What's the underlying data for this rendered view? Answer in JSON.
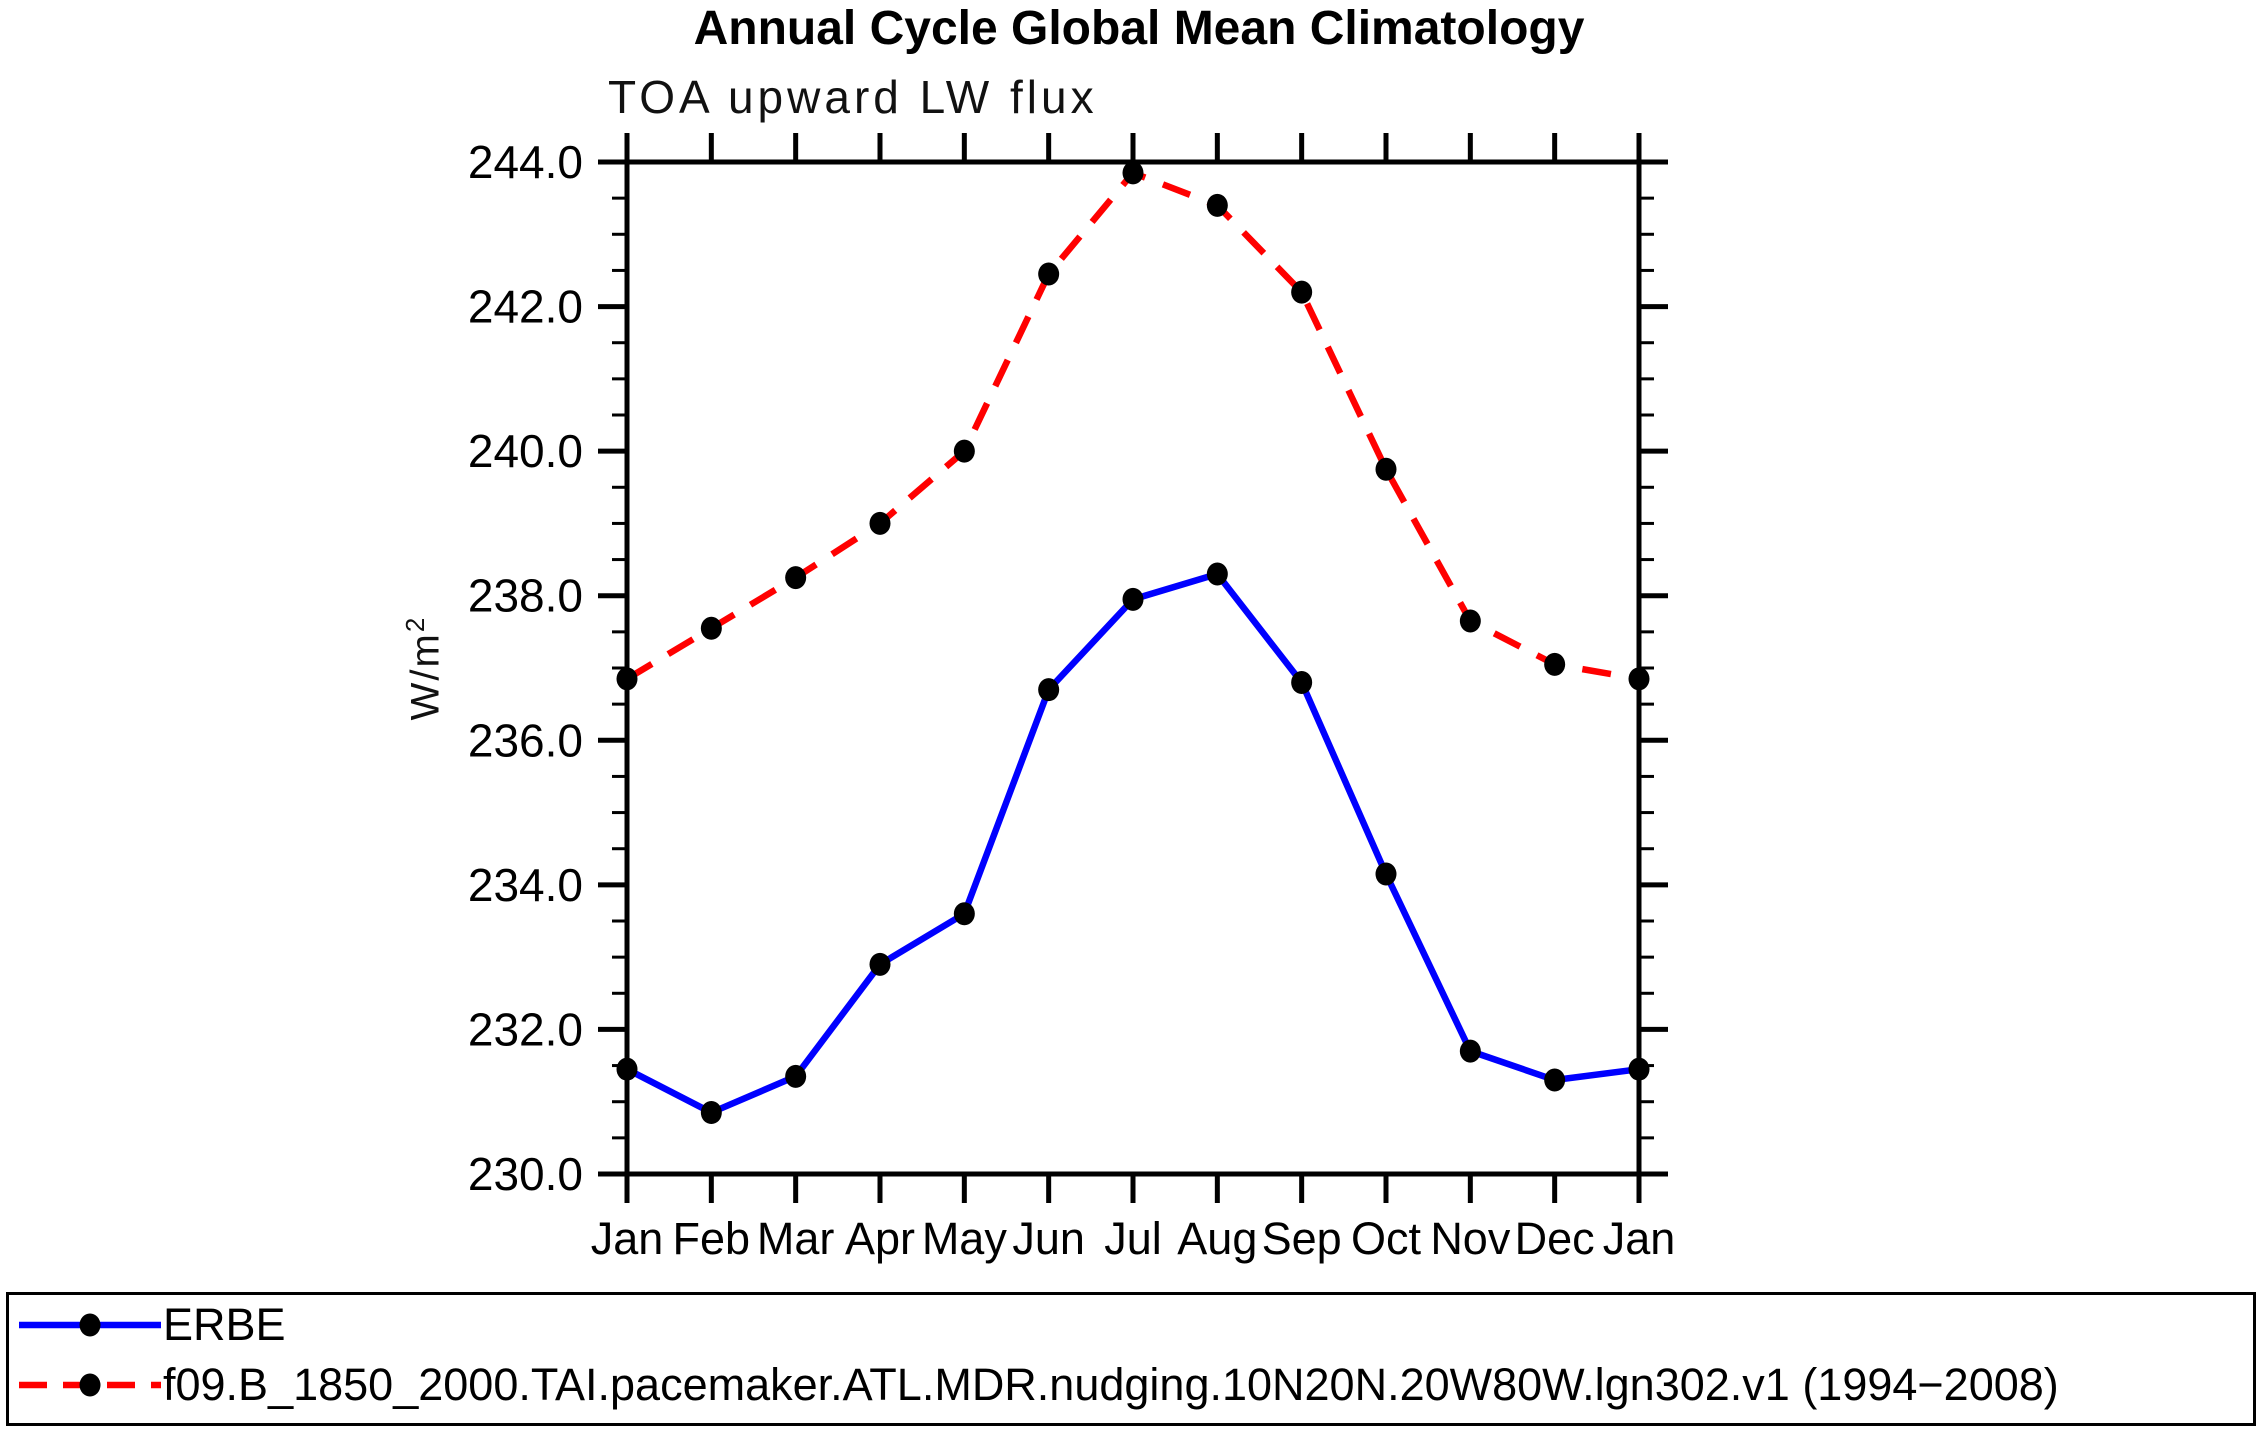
{
  "chart_data": {
    "type": "line",
    "title": "Annual Cycle Global Mean Climatology",
    "subtitle": "TOA upward LW flux",
    "ylabel": "W/m²",
    "ylabel_base": "W/m",
    "ylabel_sup": "2",
    "xlabel": "",
    "categories": [
      "Jan",
      "Feb",
      "Mar",
      "Apr",
      "May",
      "Jun",
      "Jul",
      "Aug",
      "Sep",
      "Oct",
      "Nov",
      "Dec",
      "Jan"
    ],
    "ylim": [
      230.0,
      244.0
    ],
    "yticks": [
      244.0,
      242.0,
      240.0,
      238.0,
      236.0,
      234.0,
      232.0,
      230.0
    ],
    "ytick_minor_step": 0.5,
    "grid": "off",
    "legend_position": "bottom-box",
    "marker_color": "#000000",
    "axis_color": "#000000",
    "series": [
      {
        "name": "ERBE",
        "color": "#0000ff",
        "style": "solid",
        "marker": "filled-circle",
        "values": [
          231.45,
          230.85,
          231.35,
          232.9,
          233.6,
          236.7,
          237.95,
          238.3,
          236.8,
          234.15,
          231.7,
          231.3,
          231.45
        ]
      },
      {
        "name": "f09.B_1850_2000.TAI.pacemaker.ATL.MDR.nudging.10N20N.20W80W.lgn302.v1 (1994−2008)",
        "color": "#ff0000",
        "style": "dashed",
        "marker": "filled-circle",
        "values": [
          236.85,
          237.55,
          238.25,
          239.0,
          240.0,
          242.45,
          243.85,
          243.4,
          242.2,
          239.75,
          237.65,
          237.05,
          236.85
        ]
      }
    ]
  }
}
